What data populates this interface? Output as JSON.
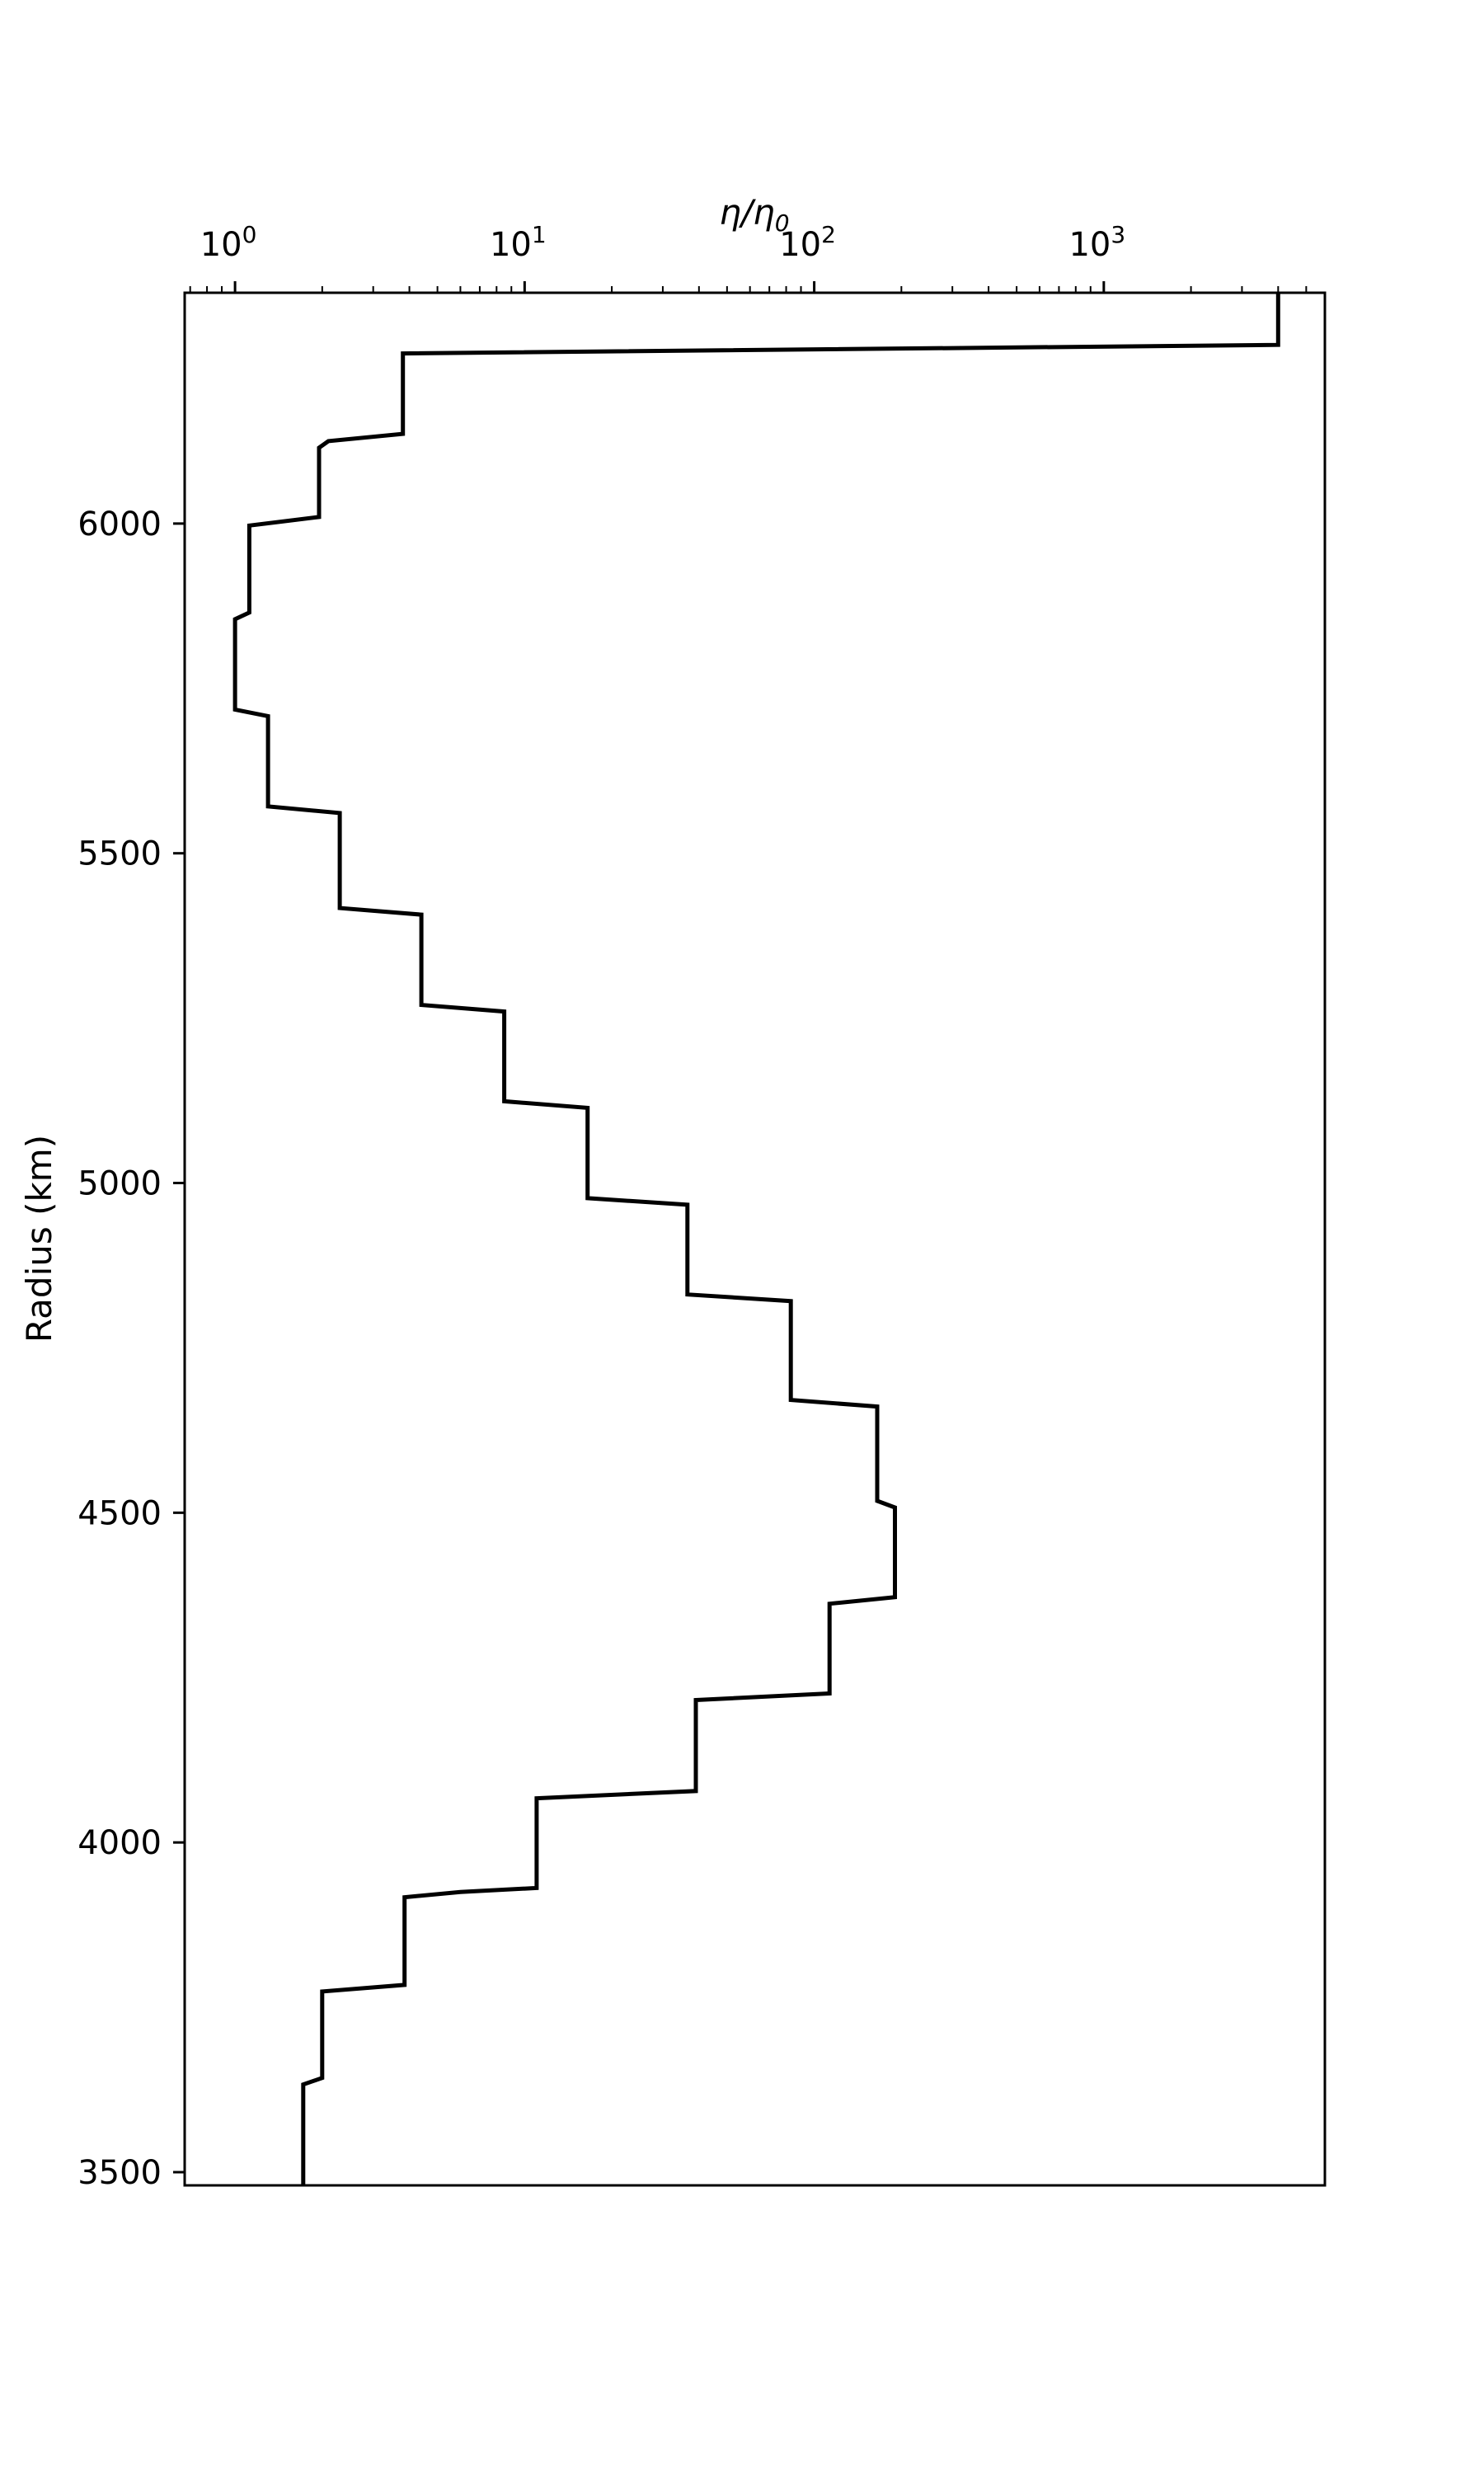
{
  "chart_data": {
    "type": "line",
    "title": "",
    "xlabel": {
      "main": "η/η",
      "sub": "0"
    },
    "ylabel": "Radius (km)",
    "x_scale": "log",
    "xlim": [
      0.67,
      5800
    ],
    "ylim": [
      3480,
      6350
    ],
    "x_ticks": [
      {
        "value": 1,
        "base": "10",
        "exp": "0"
      },
      {
        "value": 10,
        "base": "10",
        "exp": "1"
      },
      {
        "value": 100,
        "base": "10",
        "exp": "2"
      },
      {
        "value": 1000,
        "base": "10",
        "exp": "3"
      }
    ],
    "y_ticks": [
      3500,
      4000,
      4500,
      5000,
      5500,
      6000
    ],
    "grid": false,
    "legend": "none",
    "line_color": "#000000",
    "series": [
      {
        "points": [
          [
            4000,
            6350
          ],
          [
            4000,
            6271
          ],
          [
            3.8,
            6258
          ],
          [
            3.8,
            6136
          ],
          [
            2.1,
            6125
          ],
          [
            1.95,
            6115
          ],
          [
            1.95,
            6010
          ],
          [
            1.12,
            5997
          ],
          [
            1.12,
            5865
          ],
          [
            1.0,
            5855
          ],
          [
            1.0,
            5718
          ],
          [
            1.3,
            5708
          ],
          [
            1.3,
            5571
          ],
          [
            2.3,
            5561
          ],
          [
            2.3,
            5417
          ],
          [
            4.4,
            5407
          ],
          [
            4.4,
            5270
          ],
          [
            8.5,
            5260
          ],
          [
            8.5,
            5124
          ],
          [
            16.5,
            5114
          ],
          [
            16.5,
            4977
          ],
          [
            36.5,
            4967
          ],
          [
            36.5,
            4831
          ],
          [
            83,
            4821
          ],
          [
            83,
            4671
          ],
          [
            165,
            4661
          ],
          [
            165,
            4518
          ],
          [
            190,
            4508
          ],
          [
            190,
            4372
          ],
          [
            113,
            4362
          ],
          [
            113,
            4226
          ],
          [
            39,
            4216
          ],
          [
            39,
            4078
          ],
          [
            11,
            4067
          ],
          [
            11,
            3931
          ],
          [
            6,
            3925
          ],
          [
            3.85,
            3917
          ],
          [
            3.85,
            3784
          ],
          [
            2.0,
            3774
          ],
          [
            2.0,
            3643
          ],
          [
            1.72,
            3633
          ],
          [
            1.72,
            3480
          ]
        ]
      }
    ]
  }
}
